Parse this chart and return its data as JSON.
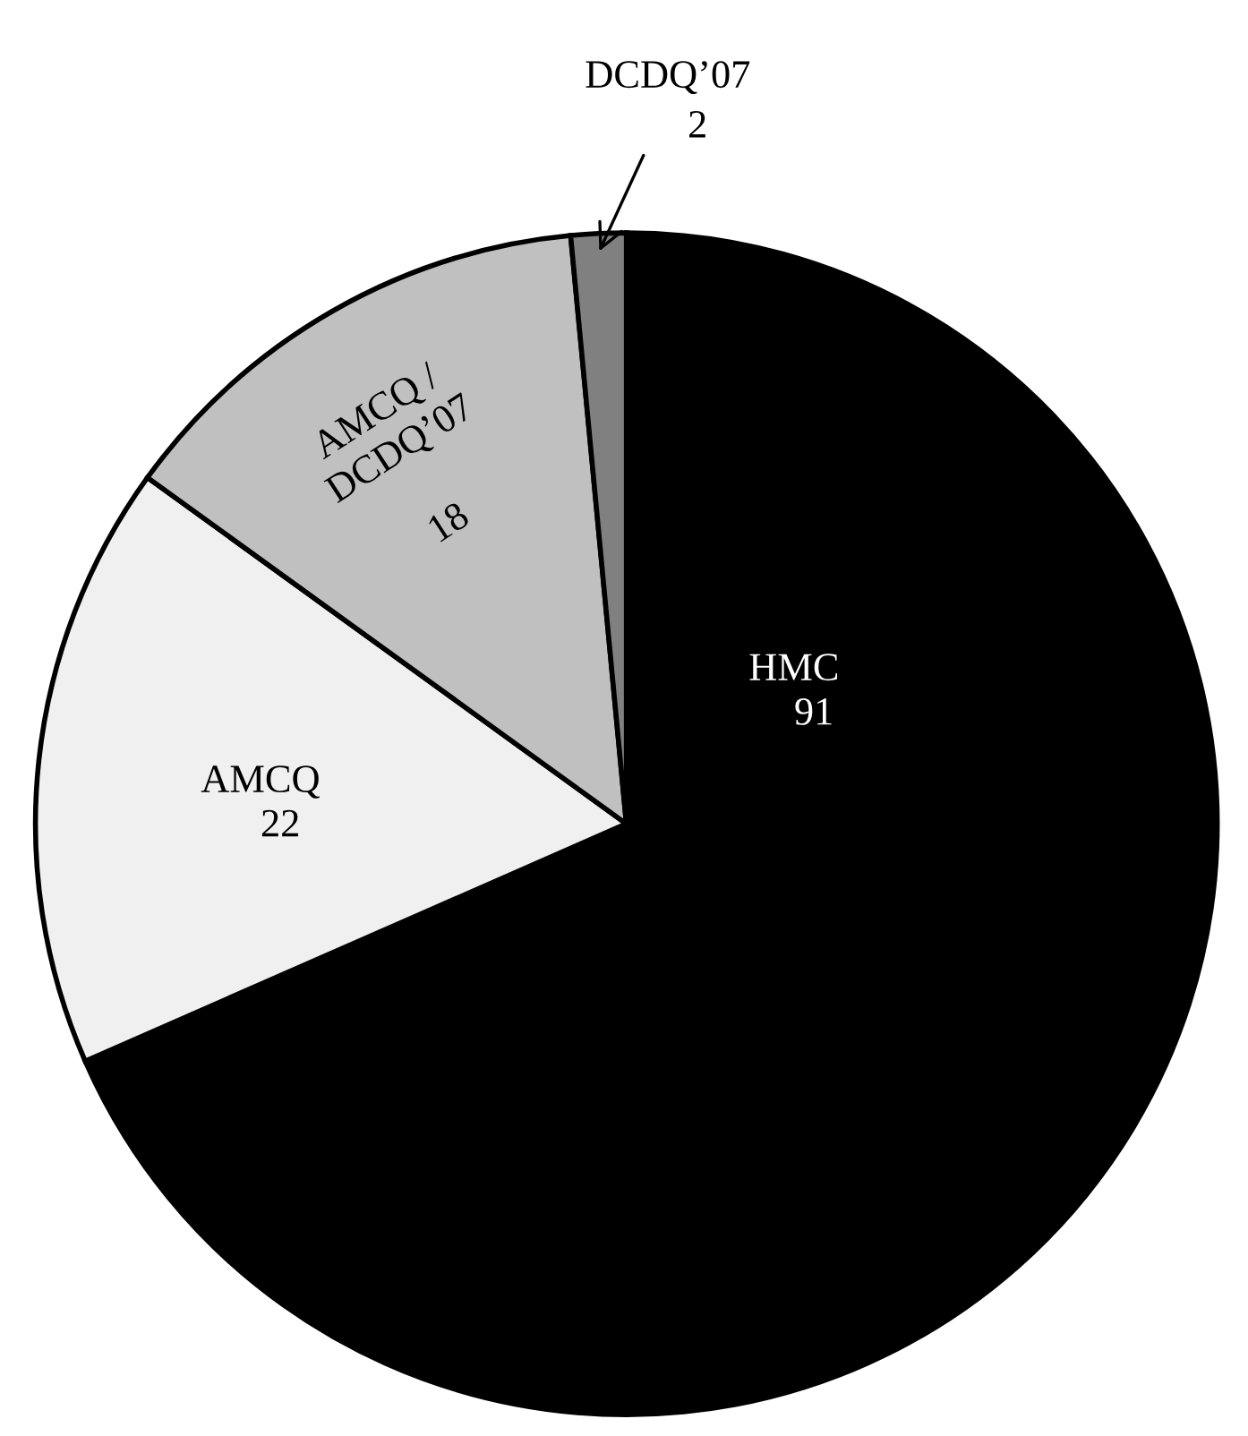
{
  "chart_data": {
    "type": "pie",
    "categories": [
      "HMC",
      "AMCQ",
      "AMCQ / DCDQ’07",
      "DCDQ’07"
    ],
    "values": [
      91,
      22,
      18,
      2
    ],
    "colors": [
      "#000000",
      "#f0f0f0",
      "#c0c0c0",
      "#808080"
    ],
    "data_labels": true
  }
}
